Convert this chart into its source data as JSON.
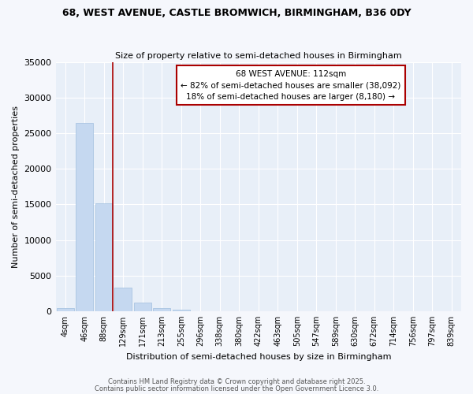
{
  "title": "68, WEST AVENUE, CASTLE BROMWICH, BIRMINGHAM, B36 0DY",
  "subtitle": "Size of property relative to semi-detached houses in Birmingham",
  "xlabel": "Distribution of semi-detached houses by size in Birmingham",
  "ylabel": "Number of semi-detached properties",
  "bins": [
    "4sqm",
    "46sqm",
    "88sqm",
    "129sqm",
    "171sqm",
    "213sqm",
    "255sqm",
    "296sqm",
    "338sqm",
    "380sqm",
    "422sqm",
    "463sqm",
    "505sqm",
    "547sqm",
    "589sqm",
    "630sqm",
    "672sqm",
    "714sqm",
    "756sqm",
    "797sqm",
    "839sqm"
  ],
  "values": [
    400,
    26500,
    15200,
    3300,
    1200,
    450,
    200,
    0,
    0,
    0,
    0,
    0,
    0,
    0,
    0,
    0,
    0,
    0,
    0,
    0,
    0
  ],
  "bar_color": "#c5d8f0",
  "bar_edge_color": "#a0bede",
  "vline_color": "#aa0000",
  "annotation_title": "68 WEST AVENUE: 112sqm",
  "annotation_line1": "← 82% of semi-detached houses are smaller (38,092)",
  "annotation_line2": "18% of semi-detached houses are larger (8,180) →",
  "annotation_box_color": "#aa0000",
  "ylim": [
    0,
    35000
  ],
  "yticks": [
    0,
    5000,
    10000,
    15000,
    20000,
    25000,
    30000,
    35000
  ],
  "footer1": "Contains HM Land Registry data © Crown copyright and database right 2025.",
  "footer2": "Contains public sector information licensed under the Open Government Licence 3.0.",
  "bg_color": "#f5f7fc",
  "plot_bg_color": "#e8eff8",
  "grid_color": "#ffffff"
}
